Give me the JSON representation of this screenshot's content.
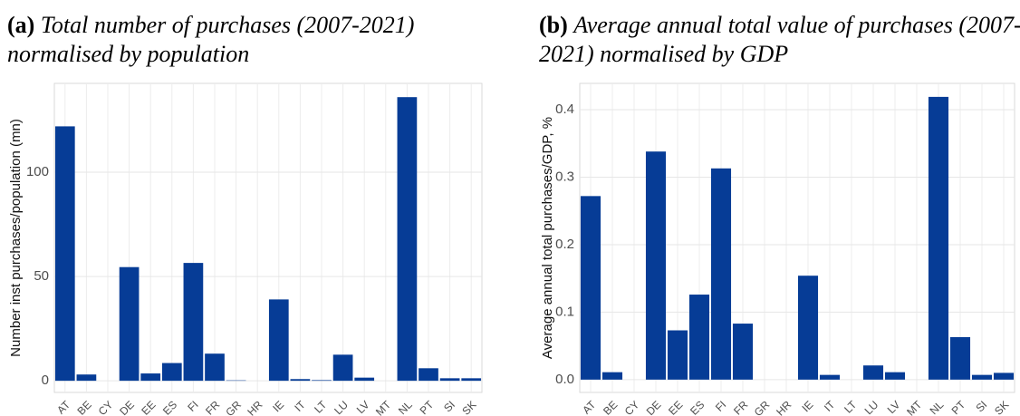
{
  "chart_data": [
    {
      "type": "bar",
      "panel_label": "(a)",
      "title": "Total number of purchases (2007-2021) normalised by population",
      "ylabel": "Number inst purchases/population (mn)",
      "categories": [
        "AT",
        "BE",
        "CY",
        "DE",
        "EE",
        "ES",
        "FI",
        "FR",
        "GR",
        "HR",
        "IE",
        "IT",
        "LT",
        "LU",
        "LV",
        "MT",
        "NL",
        "PT",
        "SI",
        "SK"
      ],
      "values": [
        122,
        3,
        0,
        54.5,
        3.5,
        8.5,
        56.5,
        13,
        0.2,
        0,
        39,
        0.8,
        0.3,
        12.5,
        1.5,
        0,
        136,
        6,
        1.2,
        1.2
      ],
      "color": "#063c96",
      "ylim": [
        -5.6,
        142.6
      ],
      "yticks": [
        0,
        50,
        100
      ],
      "grid": true
    },
    {
      "type": "bar",
      "panel_label": "(b)",
      "title": "Average annual total value of purchases (2007-2021) normalised by GDP",
      "ylabel": "Average annual total purchases/GDP, %",
      "categories": [
        "AT",
        "BE",
        "CY",
        "DE",
        "EE",
        "ES",
        "FI",
        "FR",
        "GR",
        "HR",
        "IE",
        "IT",
        "LT",
        "LU",
        "LV",
        "MT",
        "NL",
        "PT",
        "SI",
        "SK"
      ],
      "values": [
        0.272,
        0.011,
        0,
        0.338,
        0.073,
        0.126,
        0.313,
        0.083,
        0,
        0,
        0.154,
        0.007,
        0,
        0.021,
        0.011,
        0,
        0.419,
        0.063,
        0.007,
        0.01
      ],
      "color": "#063c96",
      "ylim": [
        -0.019,
        0.439
      ],
      "yticks": [
        {
          "value": 0,
          "label": "0.0"
        },
        0.1,
        0.2,
        0.3,
        0.4
      ],
      "grid": true
    }
  ]
}
